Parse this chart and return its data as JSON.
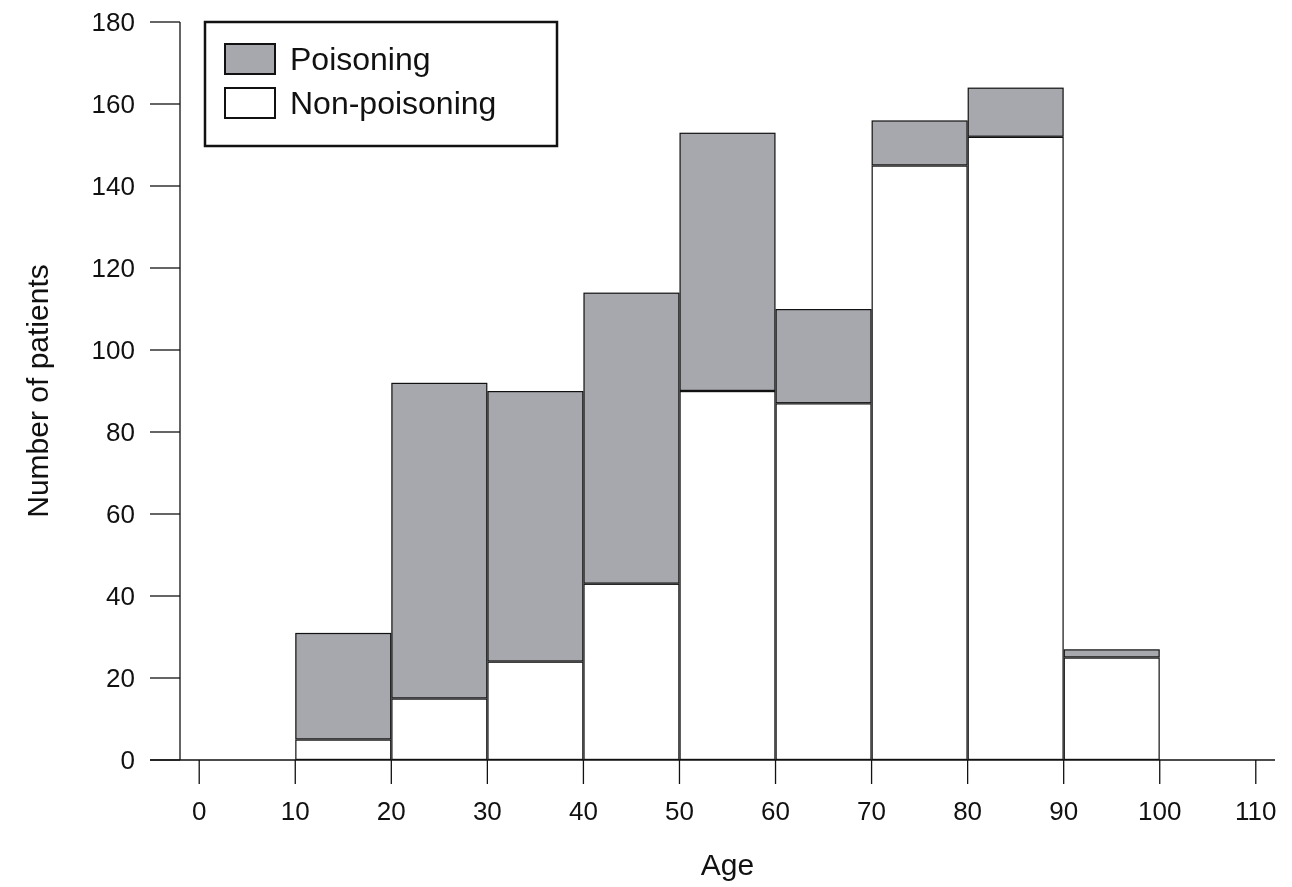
{
  "chart_data": {
    "type": "bar",
    "xlabel": "Age",
    "ylabel": "Number of patients",
    "x": [
      15,
      25,
      35,
      45,
      55,
      65,
      75,
      85,
      95
    ],
    "stacked": true,
    "series": [
      {
        "name": "Non-poisoning",
        "color": "#ffffff",
        "values": [
          5,
          15,
          24,
          43,
          90,
          87,
          145,
          152,
          25
        ]
      },
      {
        "name": "Poisoning",
        "color": "#a7a8ad",
        "values": [
          26,
          77,
          66,
          71,
          63,
          23,
          11,
          12,
          2
        ]
      }
    ],
    "xlim": [
      -2,
      112
    ],
    "xticks": [
      0,
      10,
      20,
      30,
      40,
      50,
      60,
      70,
      80,
      90,
      100,
      110
    ],
    "ylim": [
      0,
      180
    ],
    "yticks": [
      0,
      20,
      40,
      60,
      80,
      100,
      120,
      140,
      160,
      180
    ],
    "legend": "top left",
    "grid": false
  }
}
